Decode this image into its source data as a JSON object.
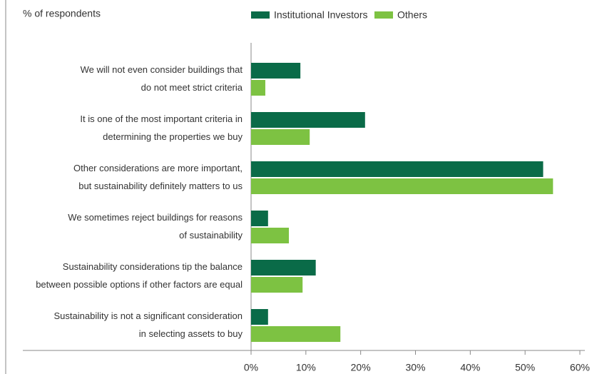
{
  "chart_data": {
    "type": "barh",
    "title": "% of respondents",
    "categories": [
      [
        "We will not even consider buildings that",
        "do not meet strict criteria"
      ],
      [
        "It is one of the most important criteria in",
        "determining the properties we buy"
      ],
      [
        "Other considerations are more important,",
        "but sustainability definitely matters to us"
      ],
      [
        "We sometimes reject buildings for reasons",
        "of sustainability"
      ],
      [
        "Sustainability considerations tip the balance",
        "between possible options if other factors are equal"
      ],
      [
        "Sustainability is not a significant consideration",
        "in selecting assets to buy"
      ]
    ],
    "series": [
      {
        "name": "Institutional Investors",
        "color": "#0a6b48",
        "values": [
          9.0,
          20.8,
          53.3,
          3.1,
          11.8,
          3.1
        ]
      },
      {
        "name": "Others",
        "color": "#7dc242",
        "values": [
          2.6,
          10.7,
          55.1,
          6.9,
          9.4,
          16.3
        ]
      }
    ],
    "xlim": [
      0,
      60
    ],
    "xticks": [
      {
        "value": 0,
        "label": "0%"
      },
      {
        "value": 10,
        "label": "10%"
      },
      {
        "value": 20,
        "label": "20%"
      },
      {
        "value": 30,
        "label": "30%"
      },
      {
        "value": 40,
        "label": "40%"
      },
      {
        "value": 50,
        "label": "50%"
      },
      {
        "value": 60,
        "label": "60%"
      }
    ]
  }
}
